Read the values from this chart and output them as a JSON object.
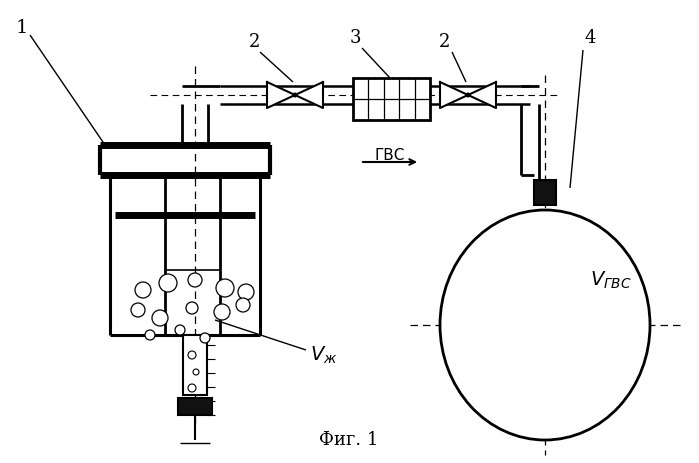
{
  "caption": "Фиг. 1",
  "background_color": "#ffffff",
  "line_color": "#000000",
  "fig_width": 6.99,
  "fig_height": 4.63,
  "dpi": 100
}
